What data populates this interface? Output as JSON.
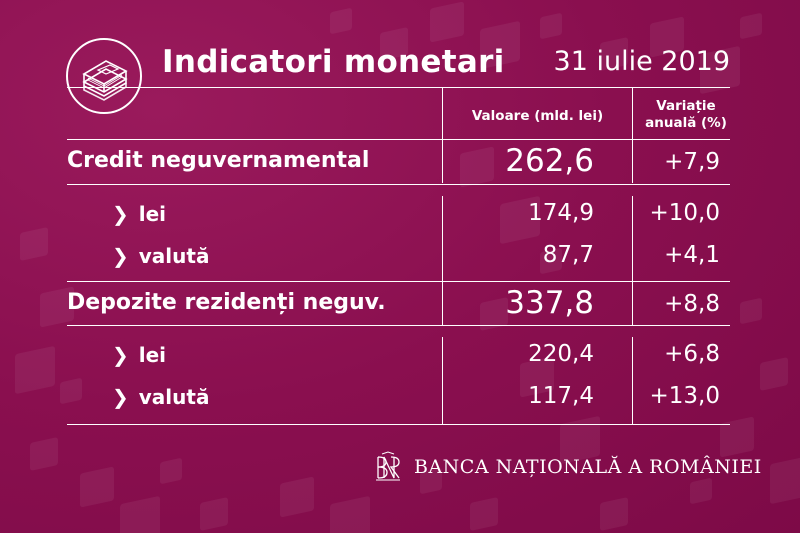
{
  "header": {
    "title": "Indicatori monetari",
    "date": "31 iulie 2019",
    "icon": "banknotes-icon"
  },
  "table": {
    "col_value": "Valoare (mld. lei)",
    "col_change_line1": "Variație",
    "col_change_line2": "anuală (%)",
    "rows": [
      {
        "label": "Credit neguvernamental",
        "value": "262,6",
        "change": "+7,9"
      },
      {
        "label": "lei",
        "value": "174,9",
        "change": "+10,0"
      },
      {
        "label": "valută",
        "value": "87,7",
        "change": "+4,1"
      },
      {
        "label": "Depozite rezidenți neguv.",
        "value": "337,8",
        "change": "+8,8"
      },
      {
        "label": "lei",
        "value": "220,4",
        "change": "+6,8"
      },
      {
        "label": "valută",
        "value": "117,4",
        "change": "+13,0"
      }
    ],
    "sub_marker": "❯"
  },
  "footer": {
    "bank_name": "BANCA NAȚIONALĂ A ROMÂNIEI",
    "logo": "bnr-monogram-icon"
  },
  "colors": {
    "background": "#8b1050",
    "text": "#ffffff"
  }
}
